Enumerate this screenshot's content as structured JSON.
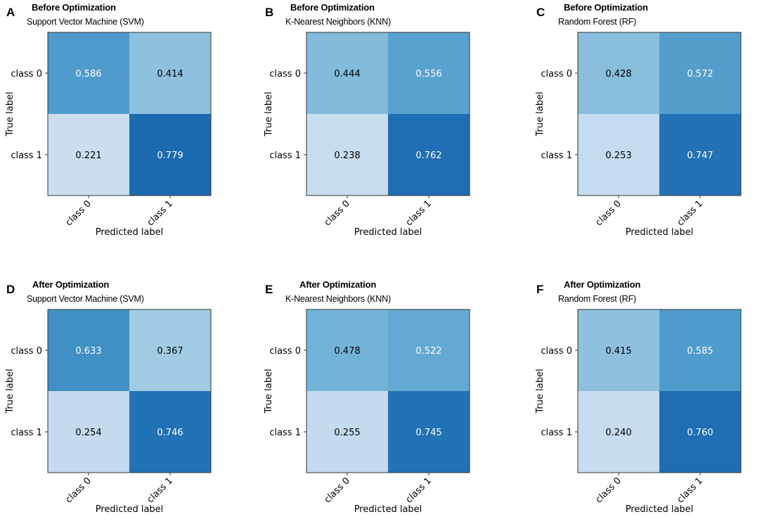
{
  "chart_data": [
    {
      "type": "heatmap",
      "panel": "A",
      "title": "Before Optimization",
      "subtitle": "Support Vector Machine (SVM)",
      "row_labels": [
        "class 0",
        "class 1"
      ],
      "col_labels": [
        "class 0",
        "class 1"
      ],
      "values": [
        [
          0.586,
          0.414
        ],
        [
          0.221,
          0.779
        ]
      ],
      "xlabel": "Predicted label",
      "ylabel": "True label"
    },
    {
      "type": "heatmap",
      "panel": "B",
      "title": "Before Optimization",
      "subtitle": "K-Nearest Neighbors (KNN)",
      "row_labels": [
        "class 0",
        "class 1"
      ],
      "col_labels": [
        "class 0",
        "class 1"
      ],
      "values": [
        [
          0.444,
          0.556
        ],
        [
          0.238,
          0.762
        ]
      ],
      "xlabel": "Predicted label",
      "ylabel": "True label"
    },
    {
      "type": "heatmap",
      "panel": "C",
      "title": "Before Optimization",
      "subtitle": "Random Forest (RF)",
      "row_labels": [
        "class 0",
        "class 1"
      ],
      "col_labels": [
        "class 0",
        "class 1"
      ],
      "values": [
        [
          0.428,
          0.572
        ],
        [
          0.253,
          0.747
        ]
      ],
      "xlabel": "Predicted label",
      "ylabel": "True label"
    },
    {
      "type": "heatmap",
      "panel": "D",
      "title": "After Optimization",
      "subtitle": "Support Vector Machine (SVM)",
      "row_labels": [
        "class 0",
        "class 1"
      ],
      "col_labels": [
        "class 0",
        "class 1"
      ],
      "values": [
        [
          0.633,
          0.367
        ],
        [
          0.254,
          0.746
        ]
      ],
      "xlabel": "Predicted label",
      "ylabel": "True label"
    },
    {
      "type": "heatmap",
      "panel": "E",
      "title": "After Optimization",
      "subtitle": "K-Nearest Neighbors (KNN)",
      "row_labels": [
        "class 0",
        "class 1"
      ],
      "col_labels": [
        "class 0",
        "class 1"
      ],
      "values": [
        [
          0.478,
          0.522
        ],
        [
          0.255,
          0.745
        ]
      ],
      "xlabel": "Predicted label",
      "ylabel": "True label"
    },
    {
      "type": "heatmap",
      "panel": "F",
      "title": "After Optimization",
      "subtitle": "Random Forest (RF)",
      "row_labels": [
        "class 0",
        "class 1"
      ],
      "col_labels": [
        "class 0",
        "class 1"
      ],
      "values": [
        [
          0.415,
          0.585
        ],
        [
          0.24,
          0.76
        ]
      ],
      "xlabel": "Predicted label",
      "ylabel": "True label"
    }
  ],
  "colormap": {
    "name": "Blues",
    "stops": [
      "#f7fbff",
      "#deebf7",
      "#c6dbef",
      "#9ecae1",
      "#6baed6",
      "#4292c6",
      "#2171b5",
      "#08519c",
      "#08306b"
    ]
  }
}
